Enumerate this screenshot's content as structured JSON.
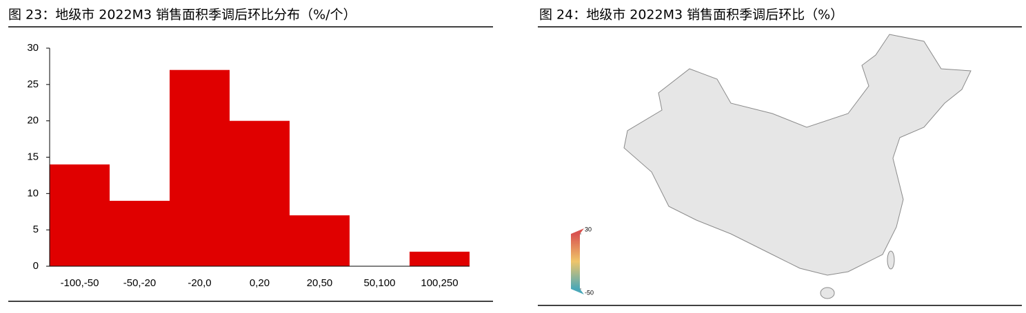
{
  "chart_data": [
    {
      "type": "bar",
      "title": "图 23：地级市 2022M3 销售面积季调后环比分布（%/个）",
      "categories": [
        "-100,-50",
        "-50,-20",
        "-20,0",
        "0,20",
        "20,50",
        "50,100",
        "100,250"
      ],
      "values": [
        14,
        9,
        27,
        20,
        7,
        0,
        2
      ],
      "color": "#e00000",
      "ylim": [
        0,
        30
      ],
      "yticks": [
        0,
        5,
        10,
        15,
        20,
        25,
        30
      ]
    },
    {
      "type": "map",
      "title": "图 24：地级市 2022M3 销售面积季调后环比（%）",
      "clim": [
        -50,
        30
      ],
      "cticks": [
        30,
        -50
      ],
      "colors": [
        "#d9534f",
        "#efc56a",
        "#4aa8b8"
      ]
    }
  ]
}
